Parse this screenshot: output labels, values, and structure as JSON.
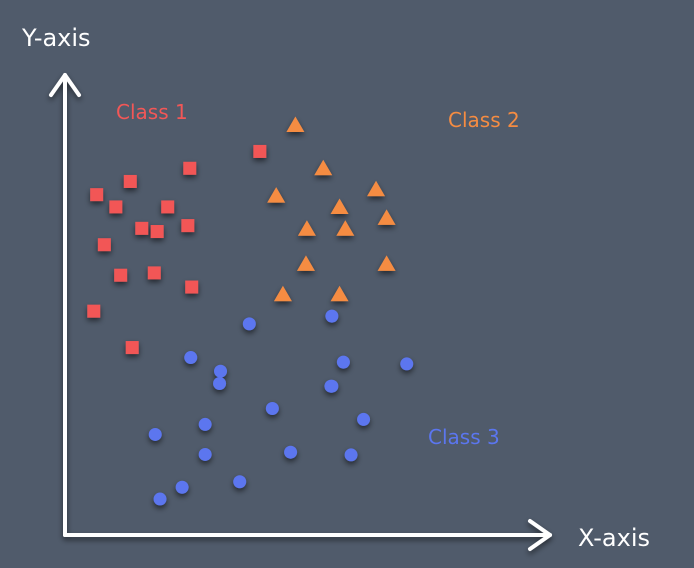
{
  "chart_data": {
    "type": "scatter",
    "xlabel": "X-axis",
    "ylabel": "Y-axis",
    "xlim": [
      0,
      10
    ],
    "ylim": [
      0,
      10
    ],
    "grid": false,
    "legend": "none",
    "tick_labels": "none",
    "background": "#505b6b",
    "axis_color": "#ffffff",
    "series": [
      {
        "name": "Class 1",
        "marker": "square",
        "color": "#f25757",
        "x": [
          2.6,
          4.06,
          1.36,
          0.66,
          1.06,
          2.14,
          1.6,
          1.92,
          2.56,
          0.82,
          1.16,
          1.86,
          2.64,
          0.6,
          1.4
        ],
        "y": [
          8.06,
          8.43,
          7.77,
          7.48,
          7.21,
          7.21,
          6.74,
          6.67,
          6.8,
          6.38,
          5.71,
          5.76,
          5.45,
          4.92,
          4.12
        ]
      },
      {
        "name": "Class 2",
        "marker": "triangle",
        "color": "#f58c42",
        "x": [
          4.8,
          5.38,
          6.48,
          4.4,
          5.72,
          5.04,
          5.84,
          6.7,
          5.02,
          6.7,
          4.54,
          5.72
        ],
        "y": [
          9.01,
          8.06,
          7.6,
          7.46,
          7.21,
          6.73,
          6.73,
          6.97,
          5.96,
          5.96,
          5.29,
          5.29
        ]
      },
      {
        "name": "Class 3",
        "marker": "circle",
        "color": "#5b76ef",
        "x": [
          3.84,
          5.56,
          2.62,
          3.24,
          5.8,
          7.12,
          3.22,
          5.54,
          4.32,
          5.56,
          6.22,
          2.92,
          1.88,
          2.92,
          4.7,
          5.96,
          2.44,
          3.64,
          1.98
        ],
        "y": [
          4.64,
          4.81,
          3.9,
          3.6,
          3.8,
          3.76,
          3.33,
          3.27,
          2.78,
          3.27,
          2.54,
          2.43,
          2.21,
          1.77,
          1.82,
          1.76,
          1.05,
          1.17,
          0.79
        ]
      }
    ]
  }
}
